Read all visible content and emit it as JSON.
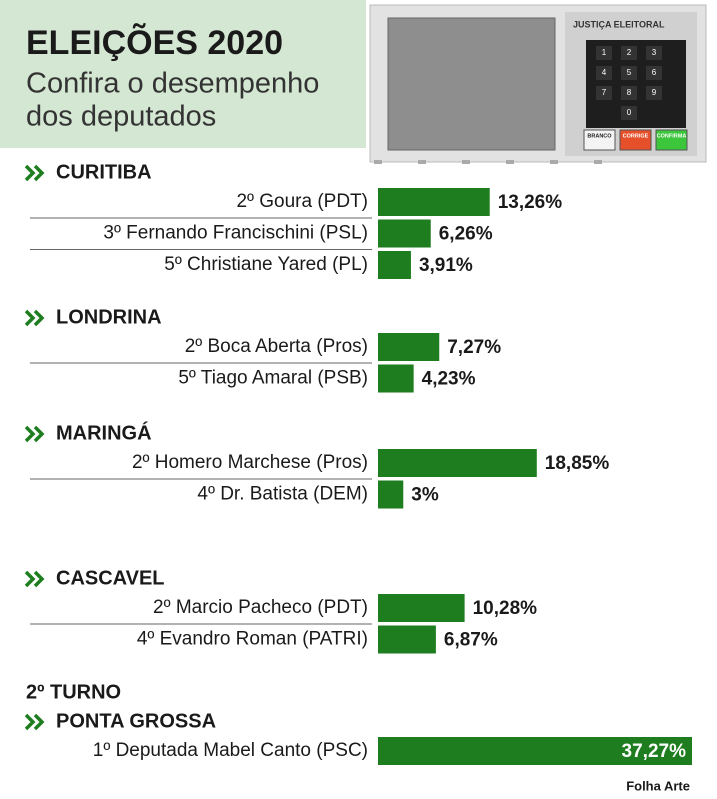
{
  "chart_data": {
    "type": "bar",
    "title": "ELEIÇÕES 2020",
    "subtitle_lines": [
      "Confira o desempenho",
      "dos deputados"
    ],
    "color": "#1e7d1e",
    "groups": [
      {
        "name": "CURITIBA",
        "categories": [
          "2º  Goura (PDT)",
          "3º  Fernando Francischini (PSL)",
          "5º  Christiane Yared (PL)"
        ],
        "values": [
          13.26,
          6.26,
          3.91
        ],
        "value_labels": [
          "13,26%",
          "6,26%",
          "3,91%"
        ]
      },
      {
        "name": "LONDRINA",
        "categories": [
          "2º Boca Aberta (Pros)",
          "5º Tiago Amaral (PSB)"
        ],
        "values": [
          7.27,
          4.23
        ],
        "value_labels": [
          "7,27%",
          "4,23%"
        ]
      },
      {
        "name": "MARINGÁ",
        "categories": [
          "2º Homero Marchese (Pros)",
          "4º Dr. Batista (DEM)"
        ],
        "values": [
          18.85,
          3
        ],
        "value_labels": [
          "18,85%",
          "3%"
        ]
      },
      {
        "name": "CASCAVEL",
        "categories": [
          "2º  Marcio Pacheco (PDT)",
          "4º  Evandro Roman  (PATRI)"
        ],
        "values": [
          10.28,
          6.87
        ],
        "value_labels": [
          "10,28%",
          "6,87%"
        ]
      },
      {
        "round": "2º TURNO",
        "name": "PONTA GROSSA",
        "categories": [
          "1º Deputada Mabel Canto (PSC)"
        ],
        "values": [
          37.27
        ],
        "value_labels": [
          "37,27%"
        ]
      }
    ],
    "credit": "Folha Arte"
  },
  "illustration": {
    "header": "JUSTIÇA ELEITORAL",
    "keys": [
      "1",
      "2",
      "3",
      "4",
      "5",
      "6",
      "7",
      "8",
      "9",
      "0"
    ],
    "buttons": [
      "BRANCO",
      "CORRIGE",
      "CONFIRMA"
    ]
  }
}
